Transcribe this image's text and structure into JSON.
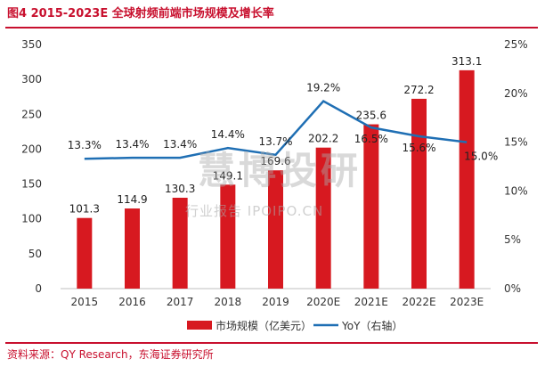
{
  "header": {
    "title": "图4  2015-2023E 全球射频前端市场规模及增长率"
  },
  "footer": {
    "source": "资料来源：QY Research，东海证券研究所"
  },
  "watermark": {
    "main": "慧博投研",
    "sub": "行业报告 IPOIPO.CN"
  },
  "colors": {
    "bar": "#d71920",
    "line": "#1f6fb4",
    "accent": "#c8102e"
  },
  "chart_data": {
    "type": "bar",
    "categories": [
      "2015",
      "2016",
      "2017",
      "2018",
      "2019",
      "2020E",
      "2021E",
      "2022E",
      "2023E"
    ],
    "series": [
      {
        "name": "市场规模（亿美元）",
        "type": "bar",
        "axis": "left",
        "values": [
          101.3,
          114.9,
          130.3,
          149.1,
          169.6,
          202.2,
          235.6,
          272.2,
          313.1
        ],
        "labels": [
          "101.3",
          "114.9",
          "130.3",
          "149.1",
          "169.6",
          "202.2",
          "235.6",
          "272.2",
          "313.1"
        ]
      },
      {
        "name": "YoY（右轴）",
        "type": "line",
        "axis": "right",
        "values": [
          13.3,
          13.4,
          13.4,
          14.4,
          13.7,
          19.2,
          16.5,
          15.6,
          15.0
        ],
        "labels": [
          "13.3%",
          "13.4%",
          "13.4%",
          "14.4%",
          "13.7%",
          "19.2%",
          "16.5%",
          "15.6%",
          "15.0%"
        ]
      }
    ],
    "y_left": {
      "min": 0,
      "max": 350,
      "ticks": [
        "0",
        "50",
        "100",
        "150",
        "200",
        "250",
        "300",
        "350"
      ]
    },
    "y_right": {
      "min": 0,
      "max": 25,
      "ticks": [
        "0%",
        "5%",
        "10%",
        "15%",
        "20%",
        "25%"
      ]
    },
    "grid": false,
    "legend_position": "bottom"
  }
}
